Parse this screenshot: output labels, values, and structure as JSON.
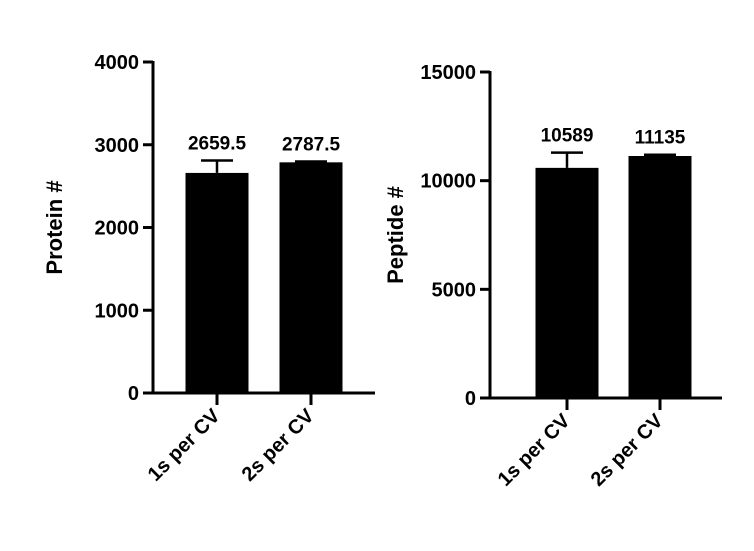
{
  "chart_data": [
    {
      "type": "bar",
      "ylabel": "Protein #",
      "categories": [
        "1s per CV",
        "2s per CV"
      ],
      "values": [
        2659.5,
        2787.5
      ],
      "errors": [
        150,
        10
      ],
      "color": "#000000",
      "ylim": [
        0,
        4000
      ],
      "yticks": [
        0,
        1000,
        2000,
        3000,
        4000
      ]
    },
    {
      "type": "bar",
      "ylabel": "Peptide #",
      "categories": [
        "1s per CV",
        "2s per CV"
      ],
      "values": [
        10589,
        11135
      ],
      "errors": [
        700,
        60
      ],
      "color": "#000000",
      "ylim": [
        0,
        15000
      ],
      "yticks": [
        0,
        5000,
        10000,
        15000
      ]
    }
  ]
}
